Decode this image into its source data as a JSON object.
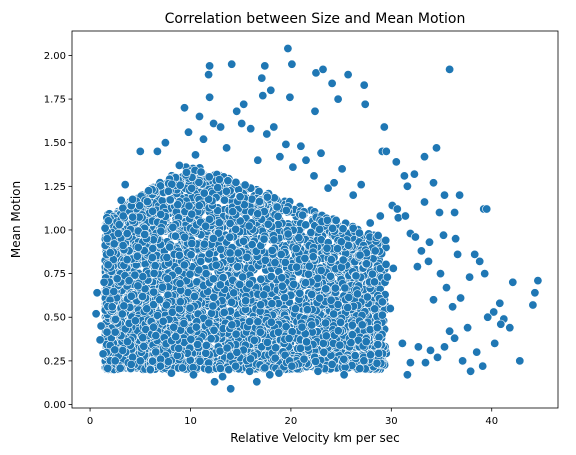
{
  "chart_data": {
    "type": "scatter",
    "title": "Correlation between Size and Mean Motion",
    "xlabel": "Relative Velocity km per sec",
    "ylabel": "Mean Motion",
    "xlim": [
      -1.8,
      46.6
    ],
    "ylim": [
      -0.02,
      2.14
    ],
    "xticks": [
      0,
      10,
      20,
      30,
      40
    ],
    "xtick_labels": [
      "0",
      "10",
      "20",
      "30",
      "40"
    ],
    "yticks": [
      0.0,
      0.25,
      0.5,
      0.75,
      1.0,
      1.25,
      1.5,
      1.75,
      2.0
    ],
    "ytick_labels": [
      "0.00",
      "0.25",
      "0.50",
      "0.75",
      "1.00",
      "1.25",
      "1.50",
      "1.75",
      "2.00"
    ],
    "grid": false,
    "marker_color": "#1f77b4",
    "marker_edge_color": "#ffffff",
    "points": [
      [
        19.7,
        2.04
      ],
      [
        11.9,
        1.94
      ],
      [
        14.1,
        1.95
      ],
      [
        17.4,
        1.94
      ],
      [
        20.1,
        1.95
      ],
      [
        22.5,
        1.9
      ],
      [
        23.2,
        1.92
      ],
      [
        25.7,
        1.89
      ],
      [
        27.3,
        1.83
      ],
      [
        35.8,
        1.92
      ],
      [
        11.8,
        1.89
      ],
      [
        17.1,
        1.87
      ],
      [
        19.9,
        1.76
      ],
      [
        24.1,
        1.84
      ],
      [
        27.4,
        1.72
      ],
      [
        9.4,
        1.7
      ],
      [
        11.9,
        1.76
      ],
      [
        15.3,
        1.72
      ],
      [
        17.2,
        1.77
      ],
      [
        18.0,
        1.8
      ],
      [
        22.4,
        1.68
      ],
      [
        24.7,
        1.75
      ],
      [
        29.1,
        1.45
      ],
      [
        29.3,
        1.59
      ],
      [
        29.5,
        1.45
      ],
      [
        30.5,
        1.39
      ],
      [
        31.3,
        1.31
      ],
      [
        31.6,
        1.25
      ],
      [
        32.3,
        1.32
      ],
      [
        33.3,
        1.42
      ],
      [
        34.2,
        1.27
      ],
      [
        34.5,
        1.47
      ],
      [
        35.3,
        1.2
      ],
      [
        30.1,
        1.14
      ],
      [
        30.6,
        1.12
      ],
      [
        30.7,
        1.07
      ],
      [
        31.4,
        1.08
      ],
      [
        33.3,
        1.16
      ],
      [
        33.8,
        0.93
      ],
      [
        34.8,
        1.1
      ],
      [
        35.2,
        0.97
      ],
      [
        36.3,
        1.1
      ],
      [
        36.6,
        0.86
      ],
      [
        36.8,
        1.2
      ],
      [
        39.2,
        1.12
      ],
      [
        39.5,
        1.12
      ],
      [
        31.9,
        0.98
      ],
      [
        32.4,
        0.96
      ],
      [
        32.6,
        0.79
      ],
      [
        33.0,
        0.88
      ],
      [
        33.7,
        0.82
      ],
      [
        34.2,
        0.6
      ],
      [
        34.9,
        0.75
      ],
      [
        35.5,
        0.67
      ],
      [
        36.1,
        0.56
      ],
      [
        36.4,
        0.95
      ],
      [
        36.9,
        0.61
      ],
      [
        37.8,
        0.73
      ],
      [
        38.3,
        0.86
      ],
      [
        38.8,
        0.82
      ],
      [
        39.3,
        0.75
      ],
      [
        40.2,
        0.53
      ],
      [
        40.8,
        0.58
      ],
      [
        41.2,
        0.49
      ],
      [
        41.8,
        0.44
      ],
      [
        42.1,
        0.7
      ],
      [
        42.8,
        0.25
      ],
      [
        44.1,
        0.57
      ],
      [
        44.3,
        0.64
      ],
      [
        44.6,
        0.71
      ],
      [
        35.8,
        0.42
      ],
      [
        36.3,
        0.38
      ],
      [
        37.1,
        0.25
      ],
      [
        37.6,
        0.44
      ],
      [
        37.9,
        0.19
      ],
      [
        38.5,
        0.3
      ],
      [
        39.1,
        0.22
      ],
      [
        39.6,
        0.5
      ],
      [
        40.3,
        0.35
      ],
      [
        40.9,
        0.46
      ],
      [
        31.1,
        0.35
      ],
      [
        31.6,
        0.17
      ],
      [
        31.9,
        0.24
      ],
      [
        32.7,
        0.33
      ],
      [
        33.4,
        0.24
      ],
      [
        33.9,
        0.31
      ],
      [
        34.6,
        0.27
      ],
      [
        35.3,
        0.33
      ],
      [
        0.6,
        0.52
      ],
      [
        0.7,
        0.64
      ],
      [
        1.0,
        0.37
      ],
      [
        1.1,
        0.45
      ],
      [
        1.3,
        0.29
      ],
      [
        1.4,
        0.7
      ],
      [
        1.5,
        1.01
      ],
      [
        1.7,
        0.95
      ],
      [
        1.8,
        0.8
      ],
      [
        2.0,
        0.87
      ],
      [
        2.2,
        0.56
      ],
      [
        2.4,
        0.92
      ],
      [
        2.5,
        0.25
      ],
      [
        2.7,
        0.72
      ],
      [
        2.9,
        1.03
      ],
      [
        3.1,
        1.17
      ],
      [
        3.3,
        1.08
      ],
      [
        3.5,
        1.26
      ],
      [
        3.7,
        0.98
      ],
      [
        12.4,
        0.13
      ],
      [
        14.0,
        0.09
      ],
      [
        16.6,
        0.13
      ],
      [
        17.9,
        0.17
      ],
      [
        5.0,
        1.45
      ],
      [
        6.7,
        1.45
      ],
      [
        7.5,
        1.5
      ],
      [
        8.9,
        1.37
      ],
      [
        9.6,
        1.33
      ],
      [
        9.8,
        1.56
      ],
      [
        10.5,
        1.43
      ],
      [
        10.9,
        1.65
      ],
      [
        11.3,
        1.52
      ],
      [
        12.3,
        1.61
      ],
      [
        13.0,
        1.59
      ],
      [
        13.6,
        1.47
      ],
      [
        14.6,
        1.68
      ],
      [
        15.1,
        1.61
      ],
      [
        16.0,
        1.58
      ],
      [
        16.7,
        1.4
      ],
      [
        17.6,
        1.55
      ],
      [
        18.3,
        1.59
      ],
      [
        18.9,
        1.42
      ],
      [
        19.5,
        1.49
      ],
      [
        20.2,
        1.36
      ],
      [
        21.0,
        1.48
      ],
      [
        21.5,
        1.4
      ],
      [
        22.3,
        1.31
      ],
      [
        23.0,
        1.44
      ],
      [
        23.7,
        1.24
      ],
      [
        24.3,
        1.27
      ],
      [
        25.1,
        1.35
      ],
      [
        26.2,
        1.2
      ],
      [
        27.0,
        1.26
      ],
      [
        27.9,
        1.04
      ],
      [
        28.4,
        0.88
      ],
      [
        28.9,
        1.08
      ],
      [
        29.6,
        0.73
      ],
      [
        30.2,
        0.78
      ],
      [
        29.9,
        0.55
      ],
      [
        28.6,
        0.44
      ],
      [
        27.5,
        0.36
      ],
      [
        26.4,
        0.28
      ],
      [
        25.3,
        0.17
      ],
      [
        24.1,
        0.23
      ],
      [
        22.7,
        0.19
      ],
      [
        21.3,
        0.26
      ],
      [
        20.1,
        0.22
      ],
      [
        18.8,
        0.18
      ],
      [
        17.4,
        0.21
      ],
      [
        15.9,
        0.19
      ],
      [
        14.5,
        0.22
      ],
      [
        13.2,
        0.16
      ],
      [
        11.8,
        0.2
      ],
      [
        10.3,
        0.17
      ],
      [
        9.2,
        0.21
      ],
      [
        8.1,
        0.18
      ],
      [
        7.0,
        0.22
      ],
      [
        6.0,
        0.2
      ],
      [
        5.0,
        0.25
      ],
      [
        4.1,
        0.23
      ]
    ],
    "annotation": "Dense cloud of several thousand points concentrated at x 2–30, y 0.2–1.4"
  }
}
